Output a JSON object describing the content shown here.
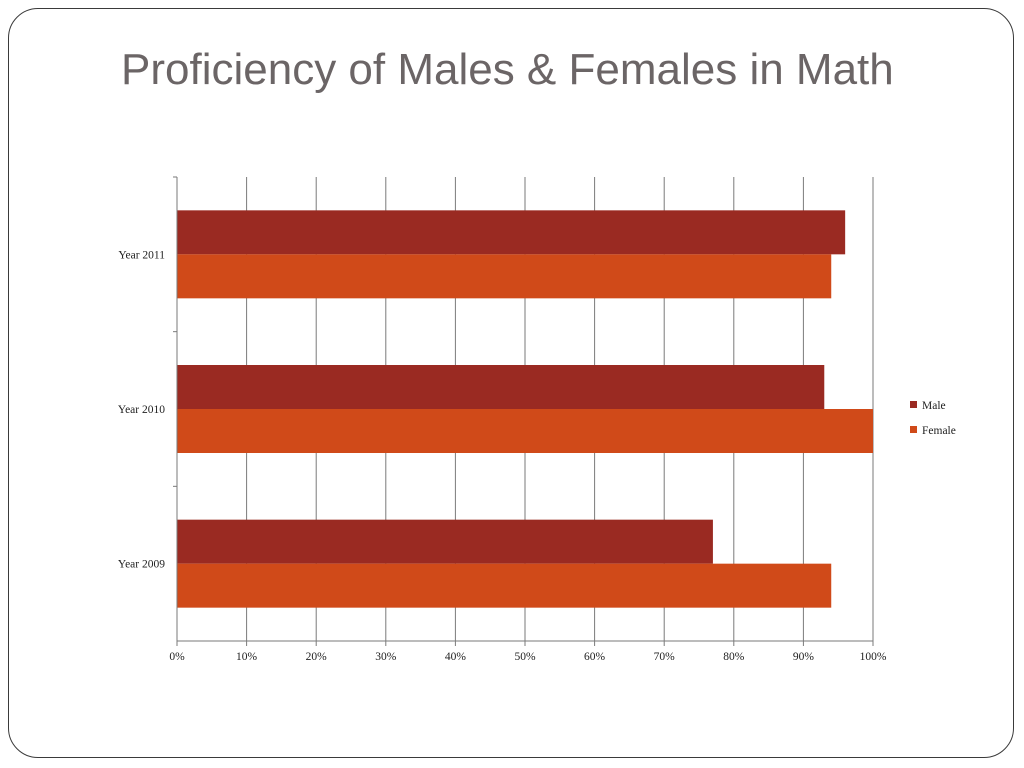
{
  "slide": {
    "title": "Proficiency of Males & Females in Math"
  },
  "chart_data": {
    "type": "bar",
    "orientation": "horizontal",
    "categories": [
      "Year 2011",
      "Year 2010",
      "Year 2009"
    ],
    "series": [
      {
        "name": "Male",
        "values": [
          96,
          93,
          77
        ],
        "color": "#9a2a22"
      },
      {
        "name": "Female",
        "values": [
          94,
          100,
          94
        ],
        "color": "#d04a19"
      }
    ],
    "title": "",
    "xlabel": "",
    "ylabel": "",
    "xlim": [
      0,
      100
    ],
    "x_ticks": [
      "0%",
      "10%",
      "20%",
      "30%",
      "40%",
      "50%",
      "60%",
      "70%",
      "80%",
      "90%",
      "100%"
    ],
    "grid": "vertical",
    "legend_position": "right"
  }
}
